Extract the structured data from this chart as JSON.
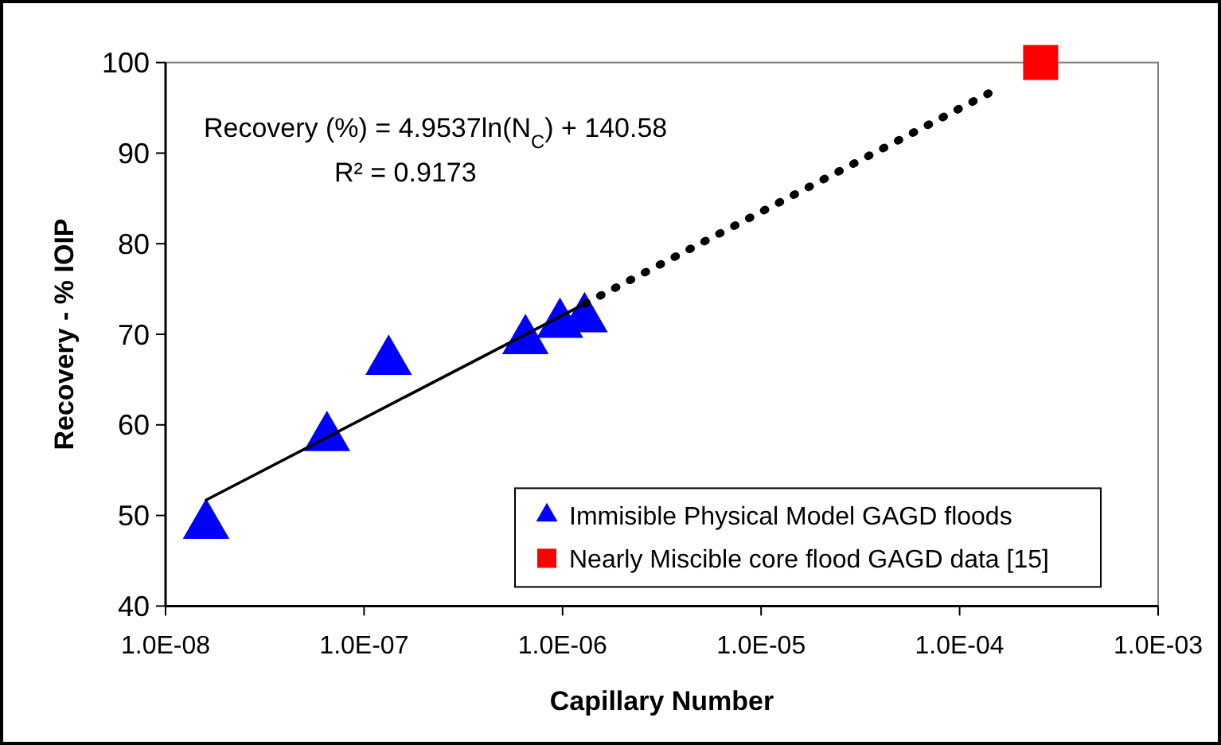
{
  "chart_data": {
    "type": "scatter",
    "xlabel": "Capillary  Number",
    "ylabel": "Recovery - % IOIP",
    "log": "x",
    "xlim": [
      1e-08,
      0.001
    ],
    "ylim": [
      40,
      100
    ],
    "xticks": [
      {
        "value": 1e-08,
        "label": "1.0E-08"
      },
      {
        "value": 1e-07,
        "label": "1.0E-07"
      },
      {
        "value": 1e-06,
        "label": "1.0E-06"
      },
      {
        "value": 1e-05,
        "label": "1.0E-05"
      },
      {
        "value": 0.0001,
        "label": "1.0E-04"
      },
      {
        "value": 0.001,
        "label": "1.0E-03"
      }
    ],
    "yticks": [
      40,
      50,
      60,
      70,
      80,
      90,
      100
    ],
    "grid": false,
    "legend": "bottom right",
    "annotations": [
      "Recovery (%) = 4.9537ln(N$_{C}$) + 140.58",
      "R² = 0.9173"
    ],
    "series": [
      {
        "name": "Immisible Physical Model GAGD floods",
        "marker": "triangle",
        "color": "#0000ff",
        "x": [
          1.6e-08,
          6.5e-08,
          1.33e-07,
          6.5e-07,
          9.7e-07,
          1.29e-06
        ],
        "values": [
          48.9,
          58.6,
          67.0,
          69.3,
          71.1,
          71.7
        ]
      },
      {
        "name": "Nearly Miscible core flood GAGD data [15]",
        "marker": "square",
        "color": "#ff0000",
        "x": [
          0.000256
        ],
        "values": [
          100
        ]
      },
      {
        "type": "line",
        "line_style": "solid",
        "color": "#000000",
        "x": [
          1.6e-08,
          1.3e-06
        ],
        "values": [
          51.7,
          73.4
        ]
      },
      {
        "type": "line",
        "line_style": "dotted",
        "color": "#000000",
        "x": [
          1.3e-06,
          0.00014
        ],
        "values": [
          73.4,
          96.6
        ]
      }
    ]
  }
}
